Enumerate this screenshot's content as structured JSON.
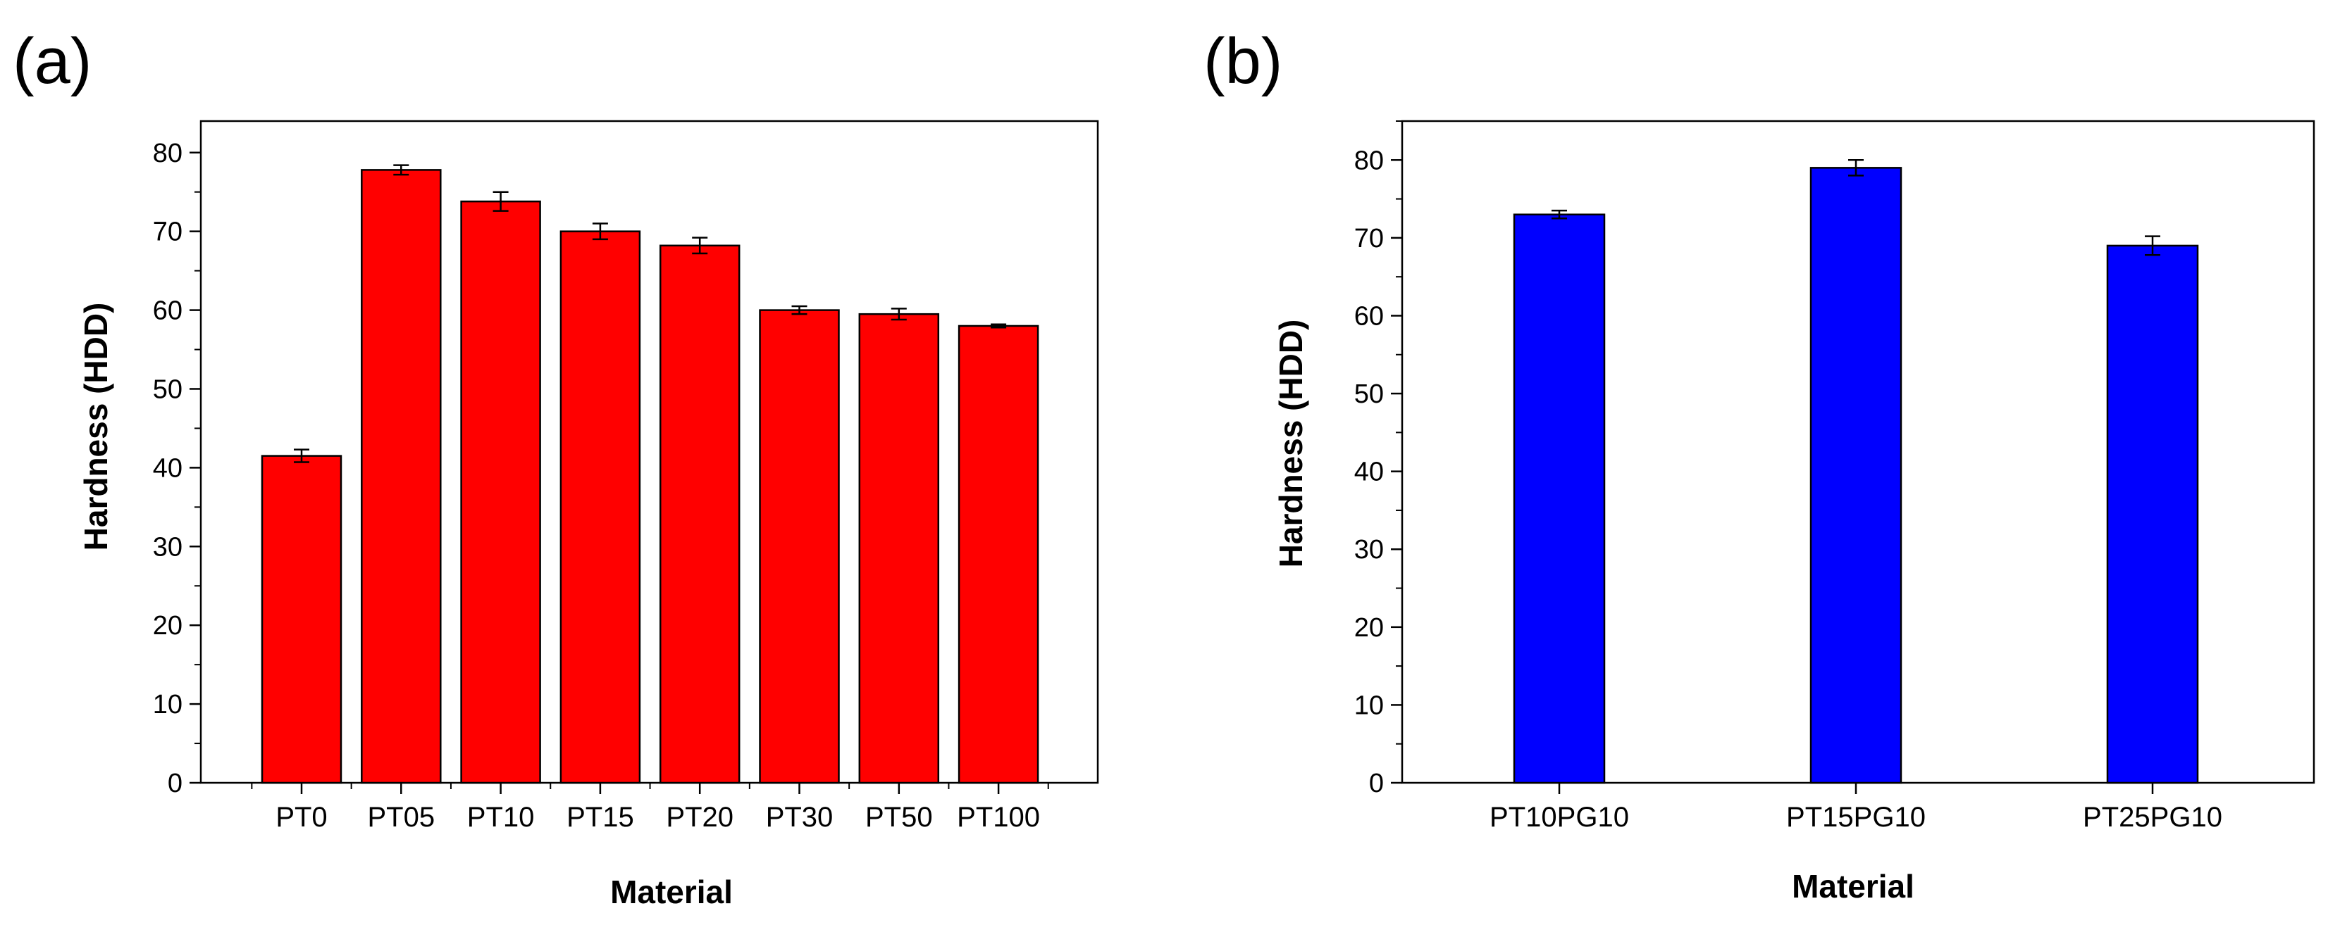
{
  "chart_data": [
    {
      "type": "bar",
      "panel_label": "(a)",
      "xlabel": "Material",
      "ylabel": "Hardness (HDD)",
      "categories": [
        "PT0",
        "PT05",
        "PT10",
        "PT15",
        "PT20",
        "PT30",
        "PT50",
        "PT100"
      ],
      "values": [
        41.5,
        77.8,
        73.8,
        70.0,
        68.2,
        60.0,
        59.5,
        58.0
      ],
      "errors": [
        0.8,
        0.6,
        1.2,
        1.0,
        1.0,
        0.5,
        0.7,
        0.2
      ],
      "ylim": [
        0,
        84
      ],
      "yticks": [
        0,
        10,
        20,
        30,
        40,
        50,
        60,
        70,
        80
      ],
      "bar_color": "#ff0000",
      "legend": "none",
      "grid": false
    },
    {
      "type": "bar",
      "panel_label": "(b)",
      "xlabel": "Material",
      "ylabel": "Hardness (HDD)",
      "categories": [
        "PT10PG10",
        "PT15PG10",
        "PT25PG10"
      ],
      "values": [
        73.0,
        79.0,
        69.0
      ],
      "errors": [
        0.5,
        1.0,
        1.2
      ],
      "ylim": [
        0,
        85
      ],
      "yticks": [
        0,
        10,
        20,
        30,
        40,
        50,
        60,
        70,
        80
      ],
      "bar_color": "#0000ff",
      "legend": "none",
      "grid": false
    }
  ]
}
